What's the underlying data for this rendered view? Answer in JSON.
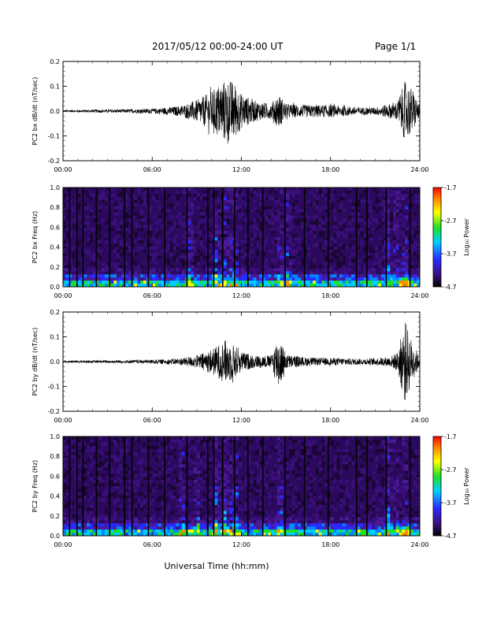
{
  "header": {
    "title": "2017/05/12  00:00-24:00 UT",
    "page": "Page 1/1"
  },
  "footer": {
    "xlabel": "Universal Time (hh:mm)"
  },
  "colors": {
    "background": "#000000",
    "dark_violet": "#2b0a5e",
    "violet": "#5a1aa8",
    "blue": "#1f3cff",
    "cyan": "#00e0ff",
    "green": "#22e022",
    "yellow": "#ffff00",
    "orange": "#ff8c00",
    "red": "#ff0000"
  },
  "colorbar": {
    "label": "Log₁₀ Power",
    "ticks": [
      "-1.7",
      "-2.7",
      "-3.7",
      "-4.7"
    ],
    "values": [
      -1.7,
      -2.7,
      -3.7,
      -4.7
    ]
  },
  "time_ticks": [
    "00:00",
    "06:00",
    "12:00",
    "18:00",
    "24:00"
  ],
  "chart_data": [
    {
      "type": "line",
      "name": "pc2-bx",
      "ylabel": "PC2 bx dB/dt (nT/sec)",
      "xlabel": "",
      "xlim": [
        0,
        24
      ],
      "ylim": [
        -0.2,
        0.2
      ],
      "yticks": [
        "0.2",
        "0.1",
        "0.0",
        "-0.1",
        "-0.2"
      ],
      "envelope": {
        "hours": [
          0,
          2,
          4,
          6,
          7,
          8,
          9,
          10,
          10.5,
          11,
          11.5,
          12,
          13,
          14,
          14.5,
          15,
          16,
          17,
          18,
          19,
          20,
          21,
          22,
          22.5,
          23,
          23.5,
          24
        ],
        "amplitude": [
          0.004,
          0.006,
          0.007,
          0.01,
          0.015,
          0.022,
          0.045,
          0.08,
          0.11,
          0.13,
          0.12,
          0.07,
          0.04,
          0.03,
          0.07,
          0.03,
          0.025,
          0.025,
          0.025,
          0.02,
          0.015,
          0.015,
          0.03,
          0.04,
          0.12,
          0.09,
          0.02
        ]
      }
    },
    {
      "type": "heatmap",
      "name": "pc2-bx-spectrogram",
      "ylabel": "PC2 bx Freq (Hz)",
      "xlabel": "",
      "xlim": [
        0,
        24
      ],
      "ylim": [
        0,
        1
      ],
      "yticks": [
        "1.0",
        "0.8",
        "0.6",
        "0.4",
        "0.2",
        "0.0"
      ],
      "gap_hours": [
        0.4,
        0.9,
        1.3,
        2.2,
        3.1,
        4.1,
        4.6,
        5.7,
        6.8,
        8.3,
        9.7,
        10.1,
        10.7,
        11.5,
        12.4,
        13.4,
        14.9,
        16.2,
        17.8,
        19.7,
        20.4,
        21.7,
        23.3
      ],
      "activity_hours": [
        8.5,
        10.3,
        10.9,
        11.2,
        11.6,
        14.6,
        15.1,
        21.9,
        22.4,
        23.0
      ]
    },
    {
      "type": "line",
      "name": "pc2-by",
      "ylabel": "PC2 by dB/dt (nT/sec)",
      "xlabel": "",
      "xlim": [
        0,
        24
      ],
      "ylim": [
        -0.2,
        0.2
      ],
      "yticks": [
        "0.2",
        "0.1",
        "0.0",
        "-0.1",
        "-0.2"
      ],
      "envelope": {
        "hours": [
          0,
          2,
          4,
          6,
          7,
          8,
          9,
          10,
          10.5,
          11,
          11.5,
          12,
          13,
          14,
          14.5,
          15,
          16,
          17,
          18,
          19,
          20,
          21,
          22,
          22.5,
          23,
          23.5,
          24
        ],
        "amplitude": [
          0.004,
          0.005,
          0.006,
          0.008,
          0.01,
          0.015,
          0.025,
          0.05,
          0.07,
          0.09,
          0.07,
          0.04,
          0.025,
          0.025,
          0.11,
          0.03,
          0.02,
          0.015,
          0.015,
          0.015,
          0.012,
          0.015,
          0.02,
          0.04,
          0.17,
          0.08,
          0.02
        ]
      }
    },
    {
      "type": "heatmap",
      "name": "pc2-by-spectrogram",
      "ylabel": "PC2 by Freq (Hz)",
      "xlabel": "",
      "xlim": [
        0,
        24
      ],
      "ylim": [
        0,
        1
      ],
      "yticks": [
        "1.0",
        "0.8",
        "0.6",
        "0.4",
        "0.2",
        "0.0"
      ],
      "gap_hours": [
        0.4,
        0.9,
        1.3,
        2.2,
        3.1,
        4.1,
        4.6,
        5.7,
        6.8,
        8.3,
        9.7,
        10.1,
        10.7,
        11.5,
        12.4,
        13.4,
        14.9,
        16.2,
        17.8,
        19.7,
        20.4,
        21.7,
        23.3
      ],
      "activity_hours": [
        8.0,
        9.0,
        10.3,
        10.9,
        11.2,
        11.6,
        14.6,
        21.9,
        22.4,
        23.0
      ]
    }
  ]
}
